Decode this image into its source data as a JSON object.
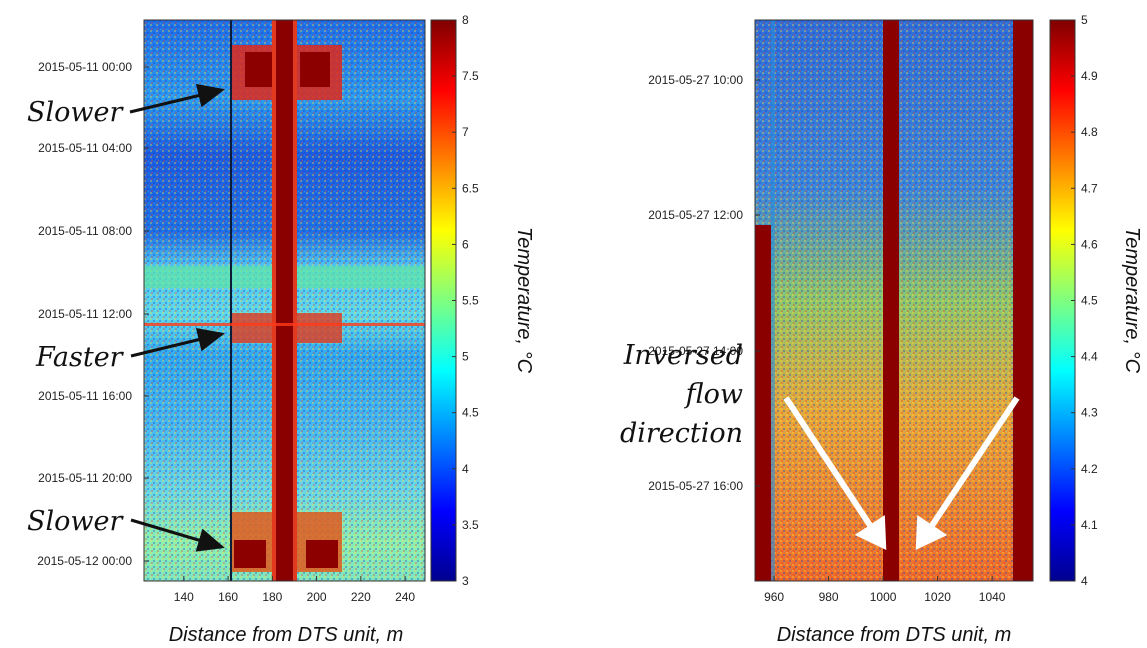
{
  "chart_data": [
    {
      "type": "heatmap",
      "xlabel": "Distance from DTS unit, m",
      "xlim": [
        122,
        249
      ],
      "x_ticks": [
        140,
        160,
        180,
        200,
        220,
        240
      ],
      "y_ticks": [
        "2015-05-11  00:00",
        "2015-05-11  04:00",
        "2015-05-11  08:00",
        "2015-05-11  12:00",
        "2015-05-11  16:00",
        "2015-05-11  20:00",
        "2015-05-12  00:00"
      ],
      "colorbar": {
        "label": "Temperature, °C",
        "min": 3,
        "max": 8,
        "ticks": [
          "3",
          "3.5",
          "4",
          "4.5",
          "5",
          "5.5",
          "6",
          "6.5",
          "7",
          "7.5",
          "8"
        ]
      },
      "colormap": "jet",
      "annotations": [
        "Slower",
        "Faster",
        "Slower"
      ]
    },
    {
      "type": "heatmap",
      "xlabel": "Distance from DTS unit, m",
      "xlim": [
        953,
        1055
      ],
      "x_ticks": [
        960,
        980,
        1000,
        1020,
        1040
      ],
      "y_ticks": [
        "2015-05-27  10:00",
        "2015-05-27  12:00",
        "2015-05-27  14:00",
        "2015-05-27  16:00"
      ],
      "colorbar": {
        "label": "Temperature, °C",
        "min": 4,
        "max": 5,
        "ticks": [
          "4",
          "4.1",
          "4.2",
          "4.3",
          "4.4",
          "4.5",
          "4.6",
          "4.7",
          "4.8",
          "4.9",
          "5"
        ]
      },
      "colormap": "jet",
      "annotations": [
        "Inversed",
        "flow",
        "direction"
      ]
    }
  ]
}
